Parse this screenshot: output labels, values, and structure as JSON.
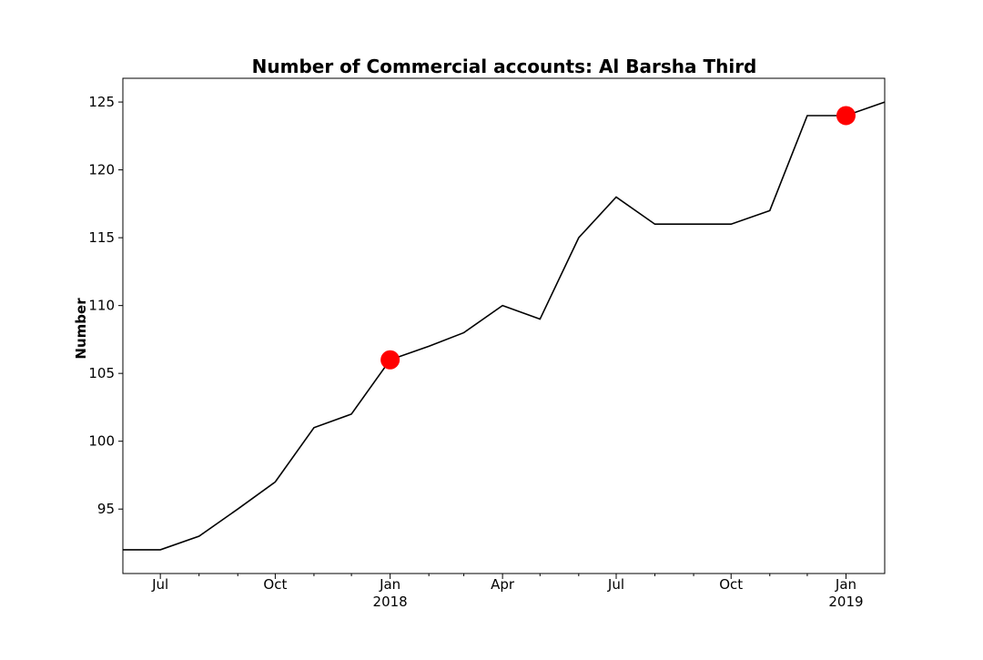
{
  "chart_data": {
    "type": "line",
    "title": "Number of Commercial accounts: Al Barsha Third",
    "xlabel": "",
    "ylabel": "Number",
    "xlim": [
      "2017-06-01",
      "2019-02-01"
    ],
    "ylim": [
      90.25,
      126.75
    ],
    "grid": false,
    "y_ticks": [
      95,
      100,
      105,
      110,
      115,
      120,
      125
    ],
    "x_ticks": [
      {
        "date": "2017-07-01",
        "label": "Jul",
        "sublabel": ""
      },
      {
        "date": "2017-10-01",
        "label": "Oct",
        "sublabel": ""
      },
      {
        "date": "2018-01-01",
        "label": "Jan",
        "sublabel": "2018"
      },
      {
        "date": "2018-04-01",
        "label": "Apr",
        "sublabel": ""
      },
      {
        "date": "2018-07-01",
        "label": "Jul",
        "sublabel": ""
      },
      {
        "date": "2018-10-01",
        "label": "Oct",
        "sublabel": ""
      },
      {
        "date": "2019-01-01",
        "label": "Jan",
        "sublabel": "2019"
      }
    ],
    "minor_ticks": [
      "2017-08-01",
      "2017-09-01",
      "2017-11-01",
      "2017-12-01",
      "2018-02-01",
      "2018-03-01",
      "2018-05-01",
      "2018-06-01",
      "2018-08-01",
      "2018-09-01",
      "2018-11-01",
      "2018-12-01"
    ],
    "series": [
      {
        "color": "#000000",
        "x": [
          "2017-06-01",
          "2017-07-01",
          "2017-08-01",
          "2017-09-01",
          "2017-10-01",
          "2017-11-01",
          "2017-12-01",
          "2018-01-01",
          "2018-02-01",
          "2018-03-01",
          "2018-04-01",
          "2018-05-01",
          "2018-06-01",
          "2018-07-01",
          "2018-08-01",
          "2018-09-01",
          "2018-10-01",
          "2018-11-01",
          "2018-12-01",
          "2019-01-01",
          "2019-02-01"
        ],
        "y": [
          92,
          92,
          93,
          95,
          97,
          101,
          102,
          106,
          107,
          108,
          110,
          109,
          115,
          118,
          116,
          116,
          116,
          117,
          124,
          124,
          125
        ]
      }
    ],
    "highlights": {
      "color": "#ff0000",
      "points": [
        {
          "x": "2018-01-01",
          "y": 106
        },
        {
          "x": "2019-01-01",
          "y": 124
        }
      ]
    }
  }
}
